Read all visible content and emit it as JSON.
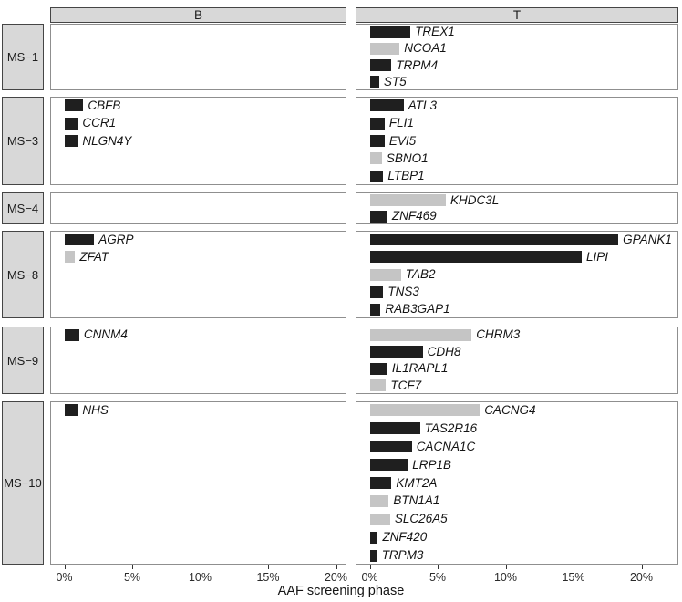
{
  "chart_data": {
    "type": "bar",
    "orientation": "horizontal",
    "title": "",
    "xlabel": "AAF screening phase",
    "ylabel": "",
    "xlim": [
      0,
      21.5
    ],
    "x_tick_values": [
      0,
      5,
      10,
      15,
      20
    ],
    "x_tick_labels": [
      "0%",
      "5%",
      "10%",
      "15%",
      "20%"
    ],
    "legend_position": "none",
    "grid": false,
    "facet_columns": [
      "B",
      "T"
    ],
    "facet_row_labels": [
      "MS−1",
      "MS−3",
      "MS−4",
      "MS−8",
      "MS−9",
      "MS−10"
    ],
    "colors": {
      "dark": "#1f1f1f",
      "light": "#c5c5c5"
    },
    "rows": [
      {
        "label": "MS−1",
        "slots": 4,
        "B": [],
        "T": [
          {
            "gene": "TREX1",
            "value": 3.0,
            "fill": "dark"
          },
          {
            "gene": "NCOA1",
            "value": 2.2,
            "fill": "light"
          },
          {
            "gene": "TRPM4",
            "value": 1.6,
            "fill": "dark"
          },
          {
            "gene": "ST5",
            "value": 0.7,
            "fill": "dark"
          }
        ]
      },
      {
        "label": "MS−3",
        "slots": 5,
        "B": [
          {
            "gene": "CBFB",
            "value": 1.4,
            "fill": "dark"
          },
          {
            "gene": "CCR1",
            "value": 1.0,
            "fill": "dark"
          },
          {
            "gene": "NLGN4Y",
            "value": 1.0,
            "fill": "dark"
          }
        ],
        "T": [
          {
            "gene": "ATL3",
            "value": 2.5,
            "fill": "dark"
          },
          {
            "gene": "FLI1",
            "value": 1.1,
            "fill": "dark"
          },
          {
            "gene": "EVI5",
            "value": 1.1,
            "fill": "dark"
          },
          {
            "gene": "SBNO1",
            "value": 0.9,
            "fill": "light"
          },
          {
            "gene": "LTBP1",
            "value": 1.0,
            "fill": "dark"
          }
        ]
      },
      {
        "label": "MS−4",
        "slots": 2,
        "B": [],
        "T": [
          {
            "gene": "KHDC3L",
            "value": 5.6,
            "fill": "light"
          },
          {
            "gene": "ZNF469",
            "value": 1.3,
            "fill": "dark"
          }
        ]
      },
      {
        "label": "MS−8",
        "slots": 5,
        "B": [
          {
            "gene": "AGRP",
            "value": 2.2,
            "fill": "dark"
          },
          {
            "gene": "ZFAT",
            "value": 0.8,
            "fill": "light"
          }
        ],
        "T": [
          {
            "gene": "GPANK1",
            "value": 18.3,
            "fill": "dark"
          },
          {
            "gene": "LIPI",
            "value": 15.6,
            "fill": "dark"
          },
          {
            "gene": "TAB2",
            "value": 2.3,
            "fill": "light"
          },
          {
            "gene": "TNS3",
            "value": 1.0,
            "fill": "dark"
          },
          {
            "gene": "RAB3GAP1",
            "value": 0.8,
            "fill": "dark"
          }
        ]
      },
      {
        "label": "MS−9",
        "slots": 4,
        "B": [
          {
            "gene": "CNNM4",
            "value": 1.1,
            "fill": "dark"
          }
        ],
        "T": [
          {
            "gene": "CHRM3",
            "value": 7.5,
            "fill": "light"
          },
          {
            "gene": "CDH8",
            "value": 3.9,
            "fill": "dark"
          },
          {
            "gene": "IL1RAPL1",
            "value": 1.3,
            "fill": "dark"
          },
          {
            "gene": "TCF7",
            "value": 1.2,
            "fill": "light"
          }
        ]
      },
      {
        "label": "MS−10",
        "slots": 9,
        "B": [
          {
            "gene": "NHS",
            "value": 1.0,
            "fill": "dark"
          }
        ],
        "T": [
          {
            "gene": "CACNG4",
            "value": 8.1,
            "fill": "light"
          },
          {
            "gene": "TAS2R16",
            "value": 3.7,
            "fill": "dark"
          },
          {
            "gene": "CACNA1C",
            "value": 3.1,
            "fill": "dark"
          },
          {
            "gene": "LRP1B",
            "value": 2.8,
            "fill": "dark"
          },
          {
            "gene": "KMT2A",
            "value": 1.6,
            "fill": "dark"
          },
          {
            "gene": "BTN1A1",
            "value": 1.4,
            "fill": "light"
          },
          {
            "gene": "SLC26A5",
            "value": 1.5,
            "fill": "light"
          },
          {
            "gene": "ZNF420",
            "value": 0.6,
            "fill": "dark"
          },
          {
            "gene": "TRPM3",
            "value": 0.55,
            "fill": "dark"
          }
        ]
      }
    ]
  }
}
